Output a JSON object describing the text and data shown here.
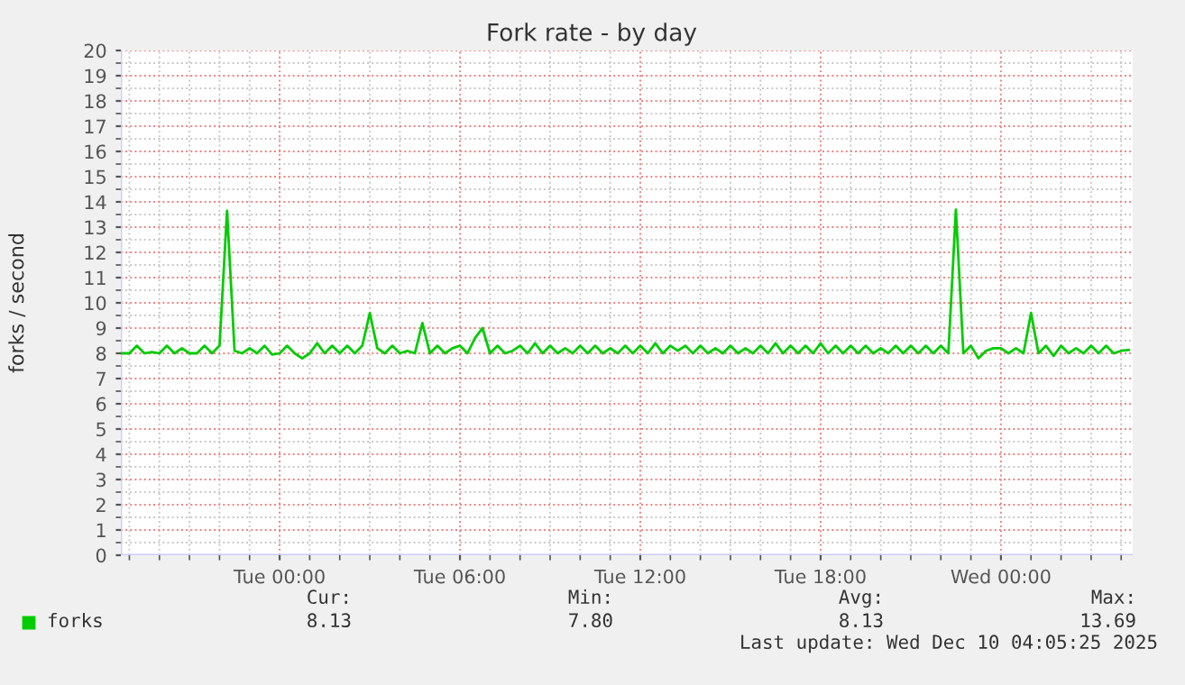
{
  "chart_data": {
    "type": "line",
    "title": "Fork rate - by day",
    "ylabel": "forks / second",
    "x": [
      "2025-12-08T18:45",
      "2025-12-08T19:00",
      "2025-12-08T19:15",
      "2025-12-08T19:30",
      "2025-12-08T19:45",
      "2025-12-08T20:00",
      "2025-12-08T20:15",
      "2025-12-08T20:30",
      "2025-12-08T20:45",
      "2025-12-08T21:00",
      "2025-12-08T21:15",
      "2025-12-08T21:30",
      "2025-12-08T21:45",
      "2025-12-08T22:00",
      "2025-12-08T22:15",
      "2025-12-08T22:30",
      "2025-12-08T22:45",
      "2025-12-08T23:00",
      "2025-12-08T23:15",
      "2025-12-08T23:30",
      "2025-12-08T23:45",
      "2025-12-09T00:00",
      "2025-12-09T00:15",
      "2025-12-09T00:30",
      "2025-12-09T00:45",
      "2025-12-09T01:00",
      "2025-12-09T01:15",
      "2025-12-09T01:30",
      "2025-12-09T01:45",
      "2025-12-09T02:00",
      "2025-12-09T02:15",
      "2025-12-09T02:30",
      "2025-12-09T02:45",
      "2025-12-09T03:00",
      "2025-12-09T03:15",
      "2025-12-09T03:30",
      "2025-12-09T03:45",
      "2025-12-09T04:00",
      "2025-12-09T04:15",
      "2025-12-09T04:30",
      "2025-12-09T04:45",
      "2025-12-09T05:00",
      "2025-12-09T05:15",
      "2025-12-09T05:30",
      "2025-12-09T05:45",
      "2025-12-09T06:00",
      "2025-12-09T06:15",
      "2025-12-09T06:30",
      "2025-12-09T06:45",
      "2025-12-09T07:00",
      "2025-12-09T07:15",
      "2025-12-09T07:30",
      "2025-12-09T07:45",
      "2025-12-09T08:00",
      "2025-12-09T08:15",
      "2025-12-09T08:30",
      "2025-12-09T08:45",
      "2025-12-09T09:00",
      "2025-12-09T09:15",
      "2025-12-09T09:30",
      "2025-12-09T09:45",
      "2025-12-09T10:00",
      "2025-12-09T10:15",
      "2025-12-09T10:30",
      "2025-12-09T10:45",
      "2025-12-09T11:00",
      "2025-12-09T11:15",
      "2025-12-09T11:30",
      "2025-12-09T11:45",
      "2025-12-09T12:00",
      "2025-12-09T12:15",
      "2025-12-09T12:30",
      "2025-12-09T12:45",
      "2025-12-09T13:00",
      "2025-12-09T13:15",
      "2025-12-09T13:30",
      "2025-12-09T13:45",
      "2025-12-09T14:00",
      "2025-12-09T14:15",
      "2025-12-09T14:30",
      "2025-12-09T14:45",
      "2025-12-09T15:00",
      "2025-12-09T15:15",
      "2025-12-09T15:30",
      "2025-12-09T15:45",
      "2025-12-09T16:00",
      "2025-12-09T16:15",
      "2025-12-09T16:30",
      "2025-12-09T16:45",
      "2025-12-09T17:00",
      "2025-12-09T17:15",
      "2025-12-09T17:30",
      "2025-12-09T17:45",
      "2025-12-09T18:00",
      "2025-12-09T18:15",
      "2025-12-09T18:30",
      "2025-12-09T18:45",
      "2025-12-09T19:00",
      "2025-12-09T19:15",
      "2025-12-09T19:30",
      "2025-12-09T19:45",
      "2025-12-09T20:00",
      "2025-12-09T20:15",
      "2025-12-09T20:30",
      "2025-12-09T20:45",
      "2025-12-09T21:00",
      "2025-12-09T21:15",
      "2025-12-09T21:30",
      "2025-12-09T21:45",
      "2025-12-09T22:00",
      "2025-12-09T22:15",
      "2025-12-09T22:30",
      "2025-12-09T22:45",
      "2025-12-09T23:00",
      "2025-12-09T23:15",
      "2025-12-09T23:30",
      "2025-12-09T23:45",
      "2025-12-10T00:00",
      "2025-12-10T00:15",
      "2025-12-10T00:30",
      "2025-12-10T00:45",
      "2025-12-10T01:00",
      "2025-12-10T01:15",
      "2025-12-10T01:30",
      "2025-12-10T01:45",
      "2025-12-10T02:00",
      "2025-12-10T02:15",
      "2025-12-10T02:30",
      "2025-12-10T02:45",
      "2025-12-10T03:00",
      "2025-12-10T03:15",
      "2025-12-10T03:30",
      "2025-12-10T03:45",
      "2025-12-10T04:00",
      "2025-12-10T04:15"
    ],
    "series": [
      {
        "name": "forks",
        "color": "#00cc00",
        "values": [
          8.0,
          8.0,
          8.3,
          8.0,
          8.05,
          8.0,
          8.3,
          8.0,
          8.2,
          8.0,
          8.0,
          8.3,
          8.0,
          8.3,
          13.65,
          8.1,
          8.0,
          8.2,
          8.0,
          8.3,
          7.95,
          8.0,
          8.3,
          8.0,
          7.8,
          8.0,
          8.4,
          8.0,
          8.3,
          8.0,
          8.3,
          8.0,
          8.3,
          9.6,
          8.2,
          8.0,
          8.3,
          8.0,
          8.1,
          8.0,
          9.2,
          8.0,
          8.3,
          8.0,
          8.2,
          8.3,
          8.0,
          8.6,
          9.0,
          8.0,
          8.3,
          8.0,
          8.1,
          8.3,
          8.0,
          8.4,
          8.0,
          8.3,
          8.0,
          8.2,
          8.0,
          8.3,
          8.0,
          8.3,
          8.0,
          8.2,
          8.0,
          8.3,
          8.0,
          8.3,
          8.0,
          8.4,
          8.0,
          8.3,
          8.1,
          8.3,
          8.0,
          8.3,
          8.0,
          8.2,
          8.0,
          8.3,
          8.0,
          8.2,
          8.0,
          8.3,
          8.0,
          8.4,
          8.0,
          8.3,
          8.0,
          8.3,
          8.0,
          8.4,
          8.0,
          8.3,
          8.0,
          8.3,
          8.0,
          8.3,
          8.0,
          8.2,
          8.0,
          8.3,
          8.0,
          8.3,
          8.0,
          8.3,
          8.0,
          8.3,
          8.0,
          13.69,
          8.0,
          8.3,
          7.8,
          8.1,
          8.2,
          8.2,
          8.0,
          8.2,
          8.0,
          9.6,
          8.0,
          8.3,
          7.9,
          8.3,
          8.0,
          8.2,
          8.0,
          8.3,
          8.0,
          8.3,
          8.0,
          8.1,
          8.13
        ]
      }
    ],
    "xlim": [
      "2025-12-08T18:43",
      "2025-12-10T04:23"
    ],
    "ylim": [
      0,
      20
    ],
    "xticks": [
      {
        "value": "2025-12-09T00:00",
        "label": "Tue 00:00"
      },
      {
        "value": "2025-12-09T06:00",
        "label": "Tue 06:00"
      },
      {
        "value": "2025-12-09T12:00",
        "label": "Tue 12:00"
      },
      {
        "value": "2025-12-09T18:00",
        "label": "Tue 18:00"
      },
      {
        "value": "2025-12-10T00:00",
        "label": "Wed 00:00"
      }
    ],
    "yticks": [
      0,
      1,
      2,
      3,
      4,
      5,
      6,
      7,
      8,
      9,
      10,
      11,
      12,
      13,
      14,
      15,
      16,
      17,
      18,
      19,
      20
    ],
    "grid": true,
    "legend": "bottom",
    "marker": "none",
    "line_style": "solid",
    "annotations": [
      "Cur:",
      "Min:",
      "Avg:",
      "Max:",
      "8.13",
      "7.80",
      "8.13",
      "13.69",
      "Last update: Wed Dec 10 04:05:25 2025"
    ]
  }
}
